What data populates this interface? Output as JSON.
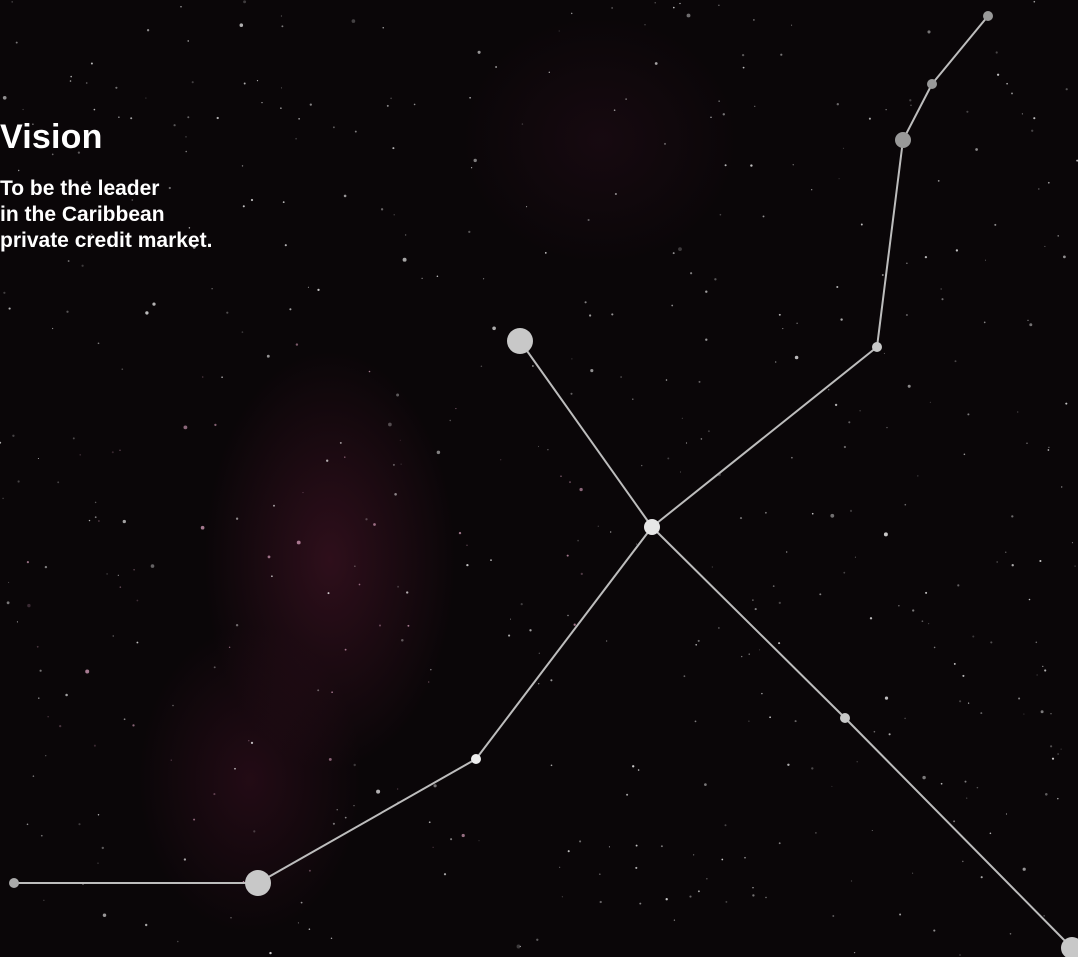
{
  "header": {
    "title": "Vision"
  },
  "body": {
    "lines": [
      "To be the leader",
      "in the Caribbean",
      "private credit market."
    ]
  }
}
